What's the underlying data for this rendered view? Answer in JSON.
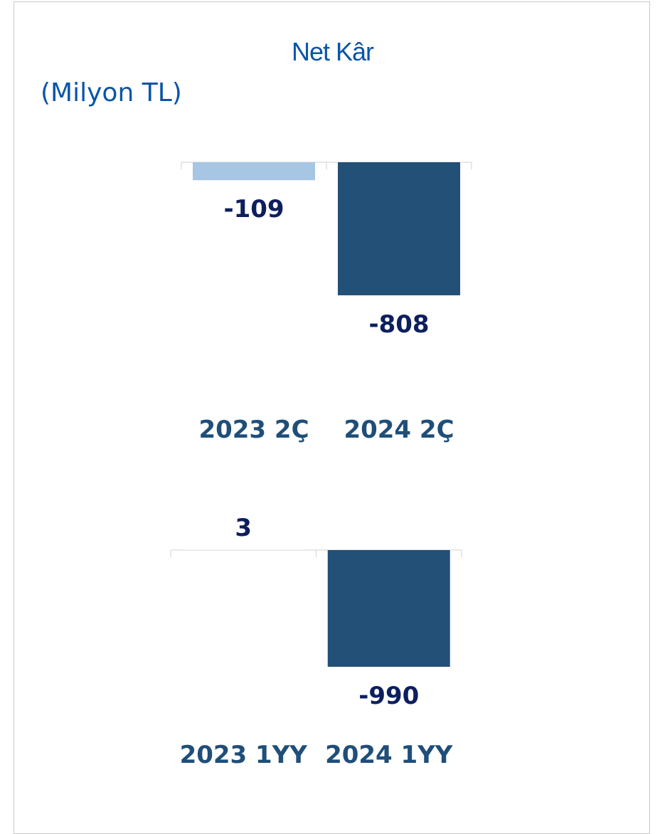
{
  "title": "Net Kâr",
  "subtitle": "(Milyon TL)",
  "colors": {
    "title": "#0a55a8",
    "bar_light": "#a6c6e3",
    "bar_dark": "#235076",
    "value_label": "#0d1f5c",
    "category_label": "#1f4e79",
    "axis": "#d0d0d0"
  },
  "chart_data": [
    {
      "type": "bar",
      "categories": [
        "2023 2Ç",
        "2024 2Ç"
      ],
      "series": [
        {
          "values": [
            -109,
            -808
          ]
        }
      ],
      "value_labels": [
        "-109",
        "-808"
      ]
    },
    {
      "type": "bar",
      "categories": [
        "2023 1YY",
        "2024 1YY"
      ],
      "series": [
        {
          "values": [
            3,
            -990
          ]
        }
      ],
      "value_labels": [
        "3",
        "-990"
      ]
    }
  ]
}
